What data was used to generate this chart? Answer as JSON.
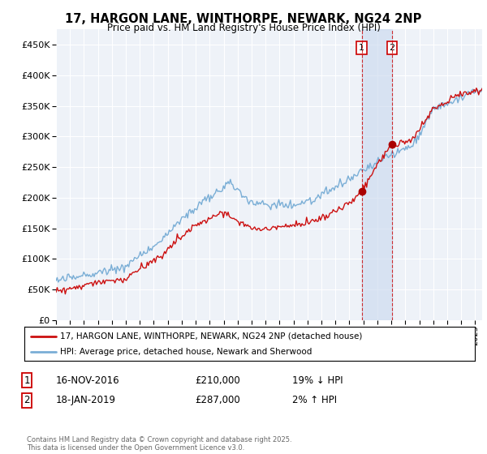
{
  "title1": "17, HARGON LANE, WINTHORPE, NEWARK, NG24 2NP",
  "title2": "Price paid vs. HM Land Registry's House Price Index (HPI)",
  "hpi_color": "#7aaed6",
  "price_color": "#cc1111",
  "marker_color": "#aa0000",
  "vline_color": "#cc0000",
  "bg_color": "#ffffff",
  "plot_bg": "#eef2f8",
  "grid_color": "#ffffff",
  "transaction1_x": 2016.877,
  "transaction1_y": 210000,
  "transaction1_label": "1",
  "transaction1_date": "16-NOV-2016",
  "transaction1_price": "£210,000",
  "transaction1_hpi": "19% ↓ HPI",
  "transaction2_x": 2019.046,
  "transaction2_y": 287000,
  "transaction2_label": "2",
  "transaction2_date": "18-JAN-2019",
  "transaction2_price": "£287,000",
  "transaction2_hpi": "2% ↑ HPI",
  "legend1": "17, HARGON LANE, WINTHORPE, NEWARK, NG24 2NP (detached house)",
  "legend2": "HPI: Average price, detached house, Newark and Sherwood",
  "footnote": "Contains HM Land Registry data © Crown copyright and database right 2025.\nThis data is licensed under the Open Government Licence v3.0.",
  "xmin": 1995,
  "xmax": 2025.5,
  "ylim_max": 475000,
  "yticks": [
    0,
    50000,
    100000,
    150000,
    200000,
    250000,
    300000,
    350000,
    400000,
    450000
  ]
}
